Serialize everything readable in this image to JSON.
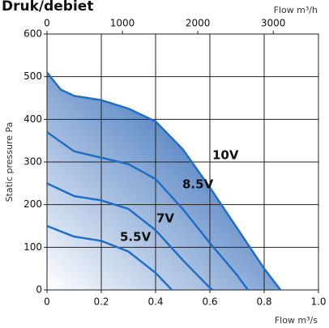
{
  "chart_data": {
    "type": "line",
    "title": "Druk/debiet",
    "ylabel": "Static pressure Pa",
    "xlabel": "Flow m³/s",
    "x2label": "Flow m³/h",
    "xlim": [
      0,
      1
    ],
    "xticks": [
      0,
      0.2,
      0.4,
      0.6,
      0.8,
      {
        "value": 1,
        "label": "1.0"
      }
    ],
    "x2lim": [
      0,
      3600
    ],
    "x2ticks": [
      0,
      1000,
      2000,
      3000
    ],
    "ylim": [
      0,
      600
    ],
    "yticks": [
      0,
      100,
      200,
      300,
      400,
      500,
      600
    ],
    "grid": true,
    "color": "#1f6fc5",
    "fill_color": "#2a64b4",
    "series": [
      {
        "name": "10V",
        "x": [
          0,
          0.05,
          0.1,
          0.2,
          0.3,
          0.4,
          0.5,
          0.6,
          0.7,
          0.8,
          0.86
        ],
        "values": [
          510,
          470,
          455,
          445,
          425,
          395,
          330,
          240,
          145,
          50,
          0
        ]
      },
      {
        "name": "8.5V",
        "x": [
          0,
          0.1,
          0.2,
          0.3,
          0.4,
          0.5,
          0.6,
          0.7,
          0.74
        ],
        "values": [
          370,
          325,
          310,
          295,
          260,
          190,
          110,
          35,
          0
        ]
      },
      {
        "name": "7V",
        "x": [
          0,
          0.1,
          0.2,
          0.3,
          0.4,
          0.5,
          0.6,
          0.61
        ],
        "values": [
          250,
          220,
          210,
          190,
          140,
          70,
          5,
          0
        ]
      },
      {
        "name": "5.5V",
        "x": [
          0,
          0.1,
          0.2,
          0.3,
          0.4,
          0.46
        ],
        "values": [
          150,
          125,
          115,
          90,
          40,
          0
        ]
      }
    ]
  }
}
